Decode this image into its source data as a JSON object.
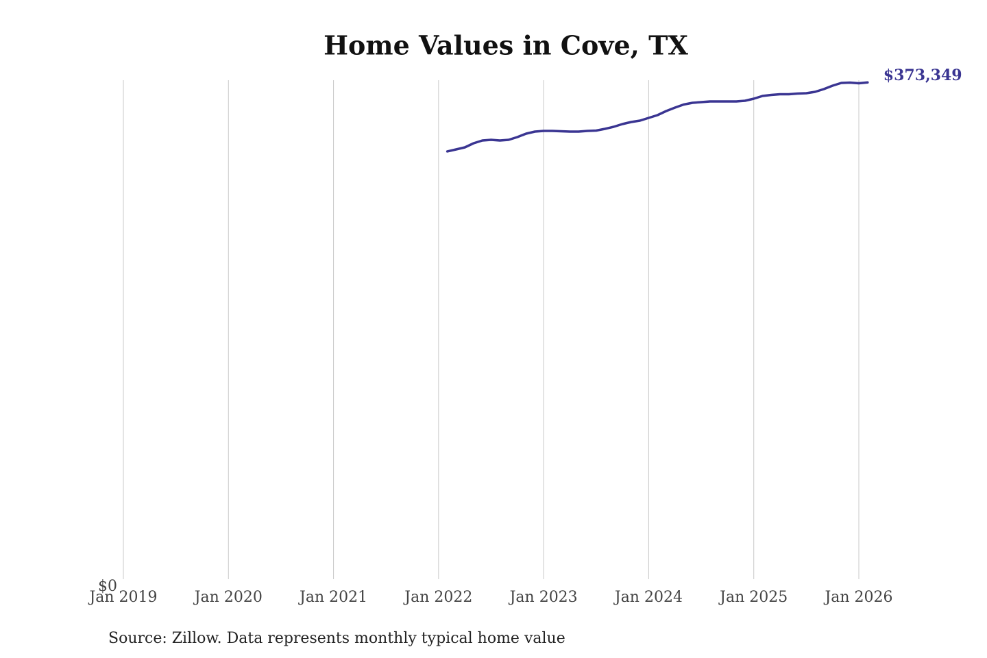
{
  "chart_data": {
    "type": "line",
    "title": "Home Values in Cove, TX",
    "source": "Source: Zillow. Data represents monthly typical home value",
    "x": [
      "2022-02",
      "2022-03",
      "2022-04",
      "2022-05",
      "2022-06",
      "2022-07",
      "2022-08",
      "2022-09",
      "2022-10",
      "2022-11",
      "2022-12",
      "2023-01",
      "2023-02",
      "2023-03",
      "2023-04",
      "2023-05",
      "2023-06",
      "2023-07",
      "2023-08",
      "2023-09",
      "2023-10",
      "2023-11",
      "2023-12",
      "2024-01",
      "2024-02",
      "2024-03",
      "2024-04",
      "2024-05",
      "2024-06",
      "2024-07",
      "2024-08",
      "2024-09",
      "2024-10",
      "2024-11",
      "2024-12",
      "2025-01",
      "2025-02",
      "2025-03",
      "2025-04",
      "2025-05",
      "2025-06",
      "2025-07",
      "2025-08",
      "2025-09",
      "2025-10",
      "2025-11",
      "2025-12",
      "2026-01",
      "2026-02"
    ],
    "series": [
      {
        "name": "Home value",
        "color": "#3a3592",
        "values": [
          322200,
          323680,
          325200,
          328250,
          330280,
          330790,
          330280,
          330790,
          332830,
          335370,
          336890,
          337400,
          337400,
          337150,
          336890,
          336890,
          337400,
          337650,
          338920,
          340450,
          342480,
          344010,
          345020,
          347060,
          349090,
          352130,
          354680,
          356960,
          358230,
          358740,
          359250,
          359250,
          359250,
          359250,
          359760,
          361280,
          363310,
          364070,
          364580,
          364580,
          365090,
          365340,
          366360,
          368390,
          370930,
          372970,
          373220,
          372710,
          373349
        ],
        "value_labels": [
          null,
          null,
          null,
          null,
          null,
          null,
          null,
          null,
          null,
          null,
          null,
          null,
          null,
          null,
          null,
          null,
          null,
          null,
          null,
          null,
          null,
          null,
          null,
          null,
          null,
          null,
          null,
          null,
          null,
          null,
          null,
          null,
          null,
          null,
          null,
          null,
          null,
          null,
          null,
          null,
          null,
          null,
          null,
          null,
          null,
          null,
          null,
          null,
          "$373,349"
        ]
      }
    ],
    "xlim": [
      "2019-01",
      "2026-01"
    ],
    "xticks": [
      {
        "value": "2019-01",
        "label": "Jan 2019"
      },
      {
        "value": "2020-01",
        "label": "Jan 2020"
      },
      {
        "value": "2021-01",
        "label": "Jan 2021"
      },
      {
        "value": "2022-01",
        "label": "Jan 2022"
      },
      {
        "value": "2023-01",
        "label": "Jan 2023"
      },
      {
        "value": "2024-01",
        "label": "Jan 2024"
      },
      {
        "value": "2025-01",
        "label": "Jan 2025"
      },
      {
        "value": "2026-01",
        "label": "Jan 2026"
      }
    ],
    "ylim": [
      0,
      375000
    ],
    "yticks": [
      {
        "value": 0,
        "label": "$0"
      }
    ],
    "grid": "x"
  }
}
